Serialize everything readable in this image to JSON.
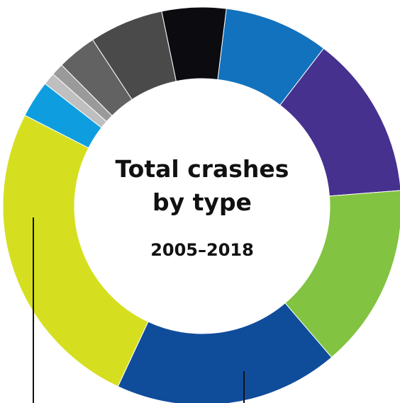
{
  "chart_data": {
    "type": "pie",
    "donut": true,
    "title_lines": [
      "Total crashes",
      "by type"
    ],
    "subtitle": "2005–2018",
    "xlabel": "",
    "ylabel": "",
    "legend": "none",
    "grid": false,
    "series": [
      {
        "value": 8.5,
        "color": "#1272bd"
      },
      {
        "value": 13.3,
        "color": "#46318f"
      },
      {
        "value": 15.0,
        "color": "#82c341"
      },
      {
        "value": 18.2,
        "color": "#0f4d9b"
      },
      {
        "value": 25.6,
        "color": "#d5df20"
      },
      {
        "value": 3.0,
        "color": "#0e9ee0"
      },
      {
        "value": 1.0,
        "color": "#bfbfbf"
      },
      {
        "value": 1.0,
        "color": "#9a9a9a"
      },
      {
        "value": 3.2,
        "color": "#626262"
      },
      {
        "value": 6.0,
        "color": "#4a4a4a"
      },
      {
        "value": 5.2,
        "color": "#0b0b10"
      }
    ],
    "leader_line_color": "#111111"
  }
}
